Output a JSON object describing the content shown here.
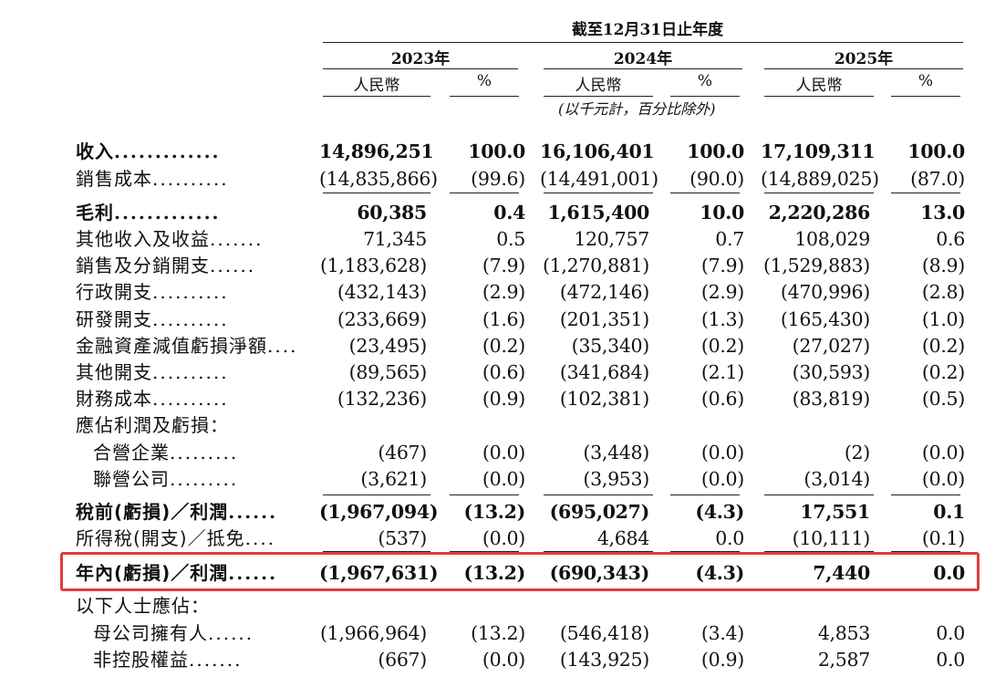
{
  "header": {
    "period": "截至12月31日止年度",
    "years": [
      "2023年",
      "2024年",
      "2025年"
    ],
    "currency_label": "人民幣",
    "percent_label": "%",
    "note": "(以千元計，百分比除外)"
  },
  "colors": {
    "highlight": "#e23b3b"
  },
  "rows": [
    {
      "label": "收入",
      "bold": true,
      "dots": ".............",
      "v": [
        "14,896,251",
        "100.0",
        "16,106,401",
        "100.0",
        "17,109,311",
        "100.0"
      ]
    },
    {
      "label": "銷售成本",
      "dots": "..........",
      "v": [
        "(14,835,866)",
        "(99.6)",
        "(14,491,001)",
        "(90.0)",
        "(14,889,025)",
        "(87.0)"
      ]
    },
    {
      "label": "毛利",
      "bold": true,
      "dots": ".............",
      "v": [
        "60,385",
        "0.4",
        "1,615,400",
        "10.0",
        "2,220,286",
        "13.0"
      ]
    },
    {
      "label": "其他收入及收益",
      "dots": ".......",
      "v": [
        "71,345",
        "0.5",
        "120,757",
        "0.7",
        "108,029",
        "0.6"
      ]
    },
    {
      "label": "銷售及分銷開支",
      "dots": "......",
      "v": [
        "(1,183,628)",
        "(7.9)",
        "(1,270,881)",
        "(7.9)",
        "(1,529,883)",
        "(8.9)"
      ]
    },
    {
      "label": "行政開支",
      "dots": "..........",
      "v": [
        "(432,143)",
        "(2.9)",
        "(472,146)",
        "(2.9)",
        "(470,996)",
        "(2.8)"
      ]
    },
    {
      "label": "研發開支",
      "dots": "..........",
      "v": [
        "(233,669)",
        "(1.6)",
        "(201,351)",
        "(1.3)",
        "(165,430)",
        "(1.0)"
      ]
    },
    {
      "label": "金融資產減值虧損淨額",
      "dots": "....",
      "v": [
        "(23,495)",
        "(0.2)",
        "(35,340)",
        "(0.2)",
        "(27,027)",
        "(0.2)"
      ]
    },
    {
      "label": "其他開支",
      "dots": "..........",
      "v": [
        "(89,565)",
        "(0.6)",
        "(341,684)",
        "(2.1)",
        "(30,593)",
        "(0.2)"
      ]
    },
    {
      "label": "財務成本",
      "dots": "..........",
      "v": [
        "(132,236)",
        "(0.9)",
        "(102,381)",
        "(0.6)",
        "(83,819)",
        "(0.5)"
      ]
    },
    {
      "label": "應佔利潤及虧損：",
      "dots": "",
      "v": [
        "",
        "",
        "",
        "",
        "",
        ""
      ]
    },
    {
      "label": "合營企業",
      "indent": true,
      "dots": ".........",
      "v": [
        "(467)",
        "(0.0)",
        "(3,448)",
        "(0.0)",
        "(2)",
        "(0.0)"
      ]
    },
    {
      "label": "聯營公司",
      "indent": true,
      "dots": ".........",
      "v": [
        "(3,621)",
        "(0.0)",
        "(3,953)",
        "(0.0)",
        "(3,014)",
        "(0.0)"
      ]
    },
    {
      "label": "稅前(虧損)／利潤",
      "bold": true,
      "dots": "......",
      "v": [
        "(1,967,094)",
        "(13.2)",
        "(695,027)",
        "(4.3)",
        "17,551",
        "0.1"
      ]
    },
    {
      "label": "所得稅(開支)／抵免",
      "dots": "....",
      "v": [
        "(537)",
        "(0.0)",
        "4,684",
        "0.0",
        "(10,111)",
        "(0.1)"
      ]
    },
    {
      "label": "年內(虧損)／利潤",
      "bold": true,
      "dots": "......",
      "v": [
        "(1,967,631)",
        "(13.2)",
        "(690,343)",
        "(4.3)",
        "7,440",
        "0.0"
      ]
    },
    {
      "label": "以下人士應佔：",
      "dots": "",
      "v": [
        "",
        "",
        "",
        "",
        "",
        ""
      ]
    },
    {
      "label": "母公司擁有人",
      "indent": true,
      "dots": "......",
      "v": [
        "(1,966,964)",
        "(13.2)",
        "(546,418)",
        "(3.4)",
        "4,853",
        "0.0"
      ]
    },
    {
      "label": "非控股權益",
      "indent": true,
      "dots": ".......",
      "v": [
        "(667)",
        "(0.0)",
        "(143,925)",
        "(0.9)",
        "2,587",
        "0.0"
      ]
    }
  ]
}
